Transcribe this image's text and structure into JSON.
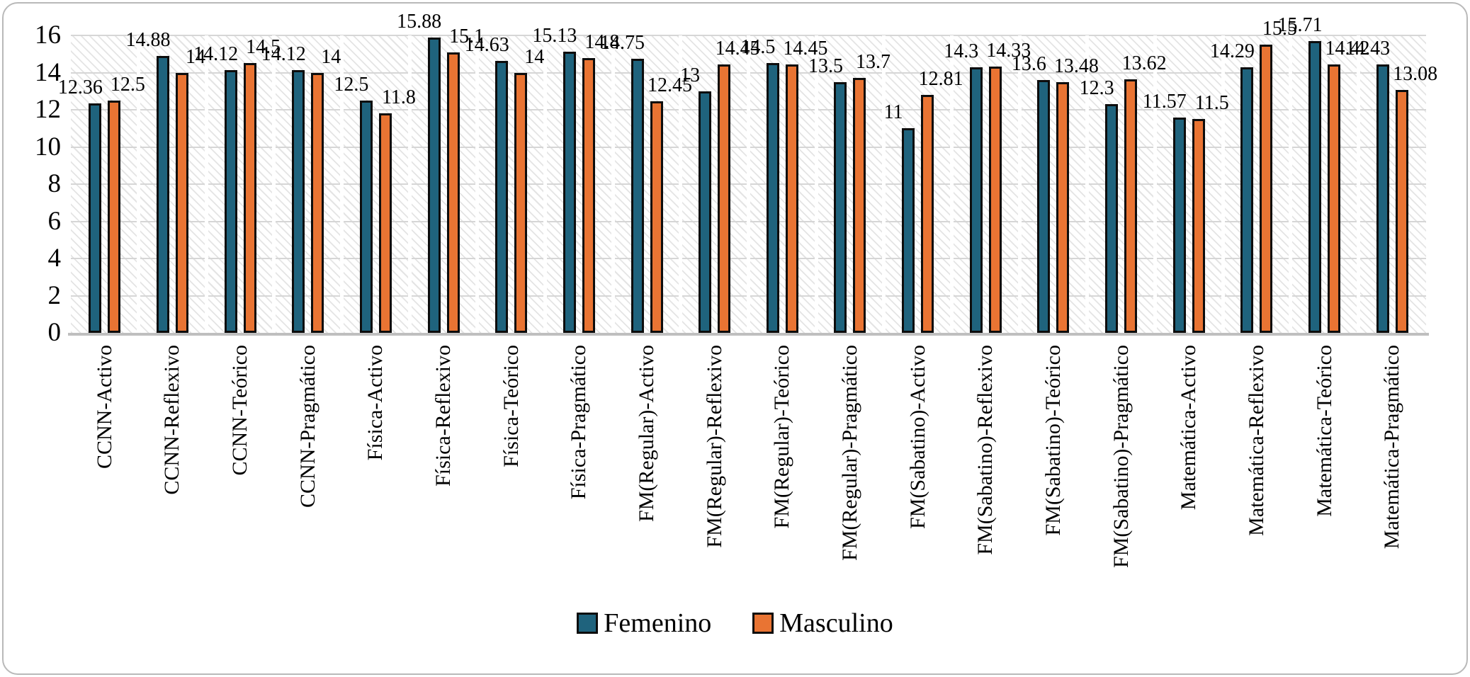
{
  "frame": {
    "border_color": "#b9b9b9",
    "background": "#ffffff"
  },
  "chart_data": {
    "type": "bar",
    "title": "",
    "xlabel": "",
    "ylabel": "",
    "categories": [
      "CCNN-Activo",
      "CCNN-Reflexivo",
      "CCNN-Teórico",
      "CCNN-Pragmático",
      "Física-Activo",
      "Física-Reflexivo",
      "Física-Teórico",
      "Física-Pragmático",
      "FM(Regular)-Activo",
      "FM(Regular)-Reflexivo",
      "FM(Regular)-Teórico",
      "FM(Regular)-Pragmático",
      "FM(Sabatino)-Activo",
      "FM(Sabatino)-Reflexivo",
      "FM(Sabatino)-Teórico",
      "FM(Sabatino)-Pragmático",
      "Matemática-Activo",
      "Matemática-Reflexivo",
      "Matemática-Teórico",
      "Matemática-Pragmático"
    ],
    "series": [
      {
        "name": "Femenino",
        "color": "#1F637D",
        "values": [
          12.36,
          14.88,
          14.12,
          14.12,
          12.5,
          15.88,
          14.63,
          15.13,
          14.75,
          13,
          14.5,
          13.5,
          11,
          14.3,
          13.6,
          12.3,
          11.57,
          14.29,
          15.71,
          14.43
        ]
      },
      {
        "name": "Masculino",
        "color": "#E97433",
        "values": [
          12.5,
          14,
          14.5,
          14,
          11.8,
          15.1,
          14,
          14.8,
          12.45,
          14.45,
          14.45,
          13.7,
          12.81,
          14.33,
          13.48,
          13.62,
          11.5,
          15.5,
          14.42,
          13.08
        ]
      }
    ],
    "ylim": [
      0,
      16
    ],
    "yticks": [
      0,
      2,
      4,
      6,
      8,
      10,
      12,
      14,
      16
    ],
    "grid": true,
    "plot_background_pattern": "diagonal-hatch",
    "bar_outline_color": "#0d0d0d",
    "data_labels": true,
    "legend_position": "bottom-center",
    "category_label_rotation_deg": -90
  }
}
